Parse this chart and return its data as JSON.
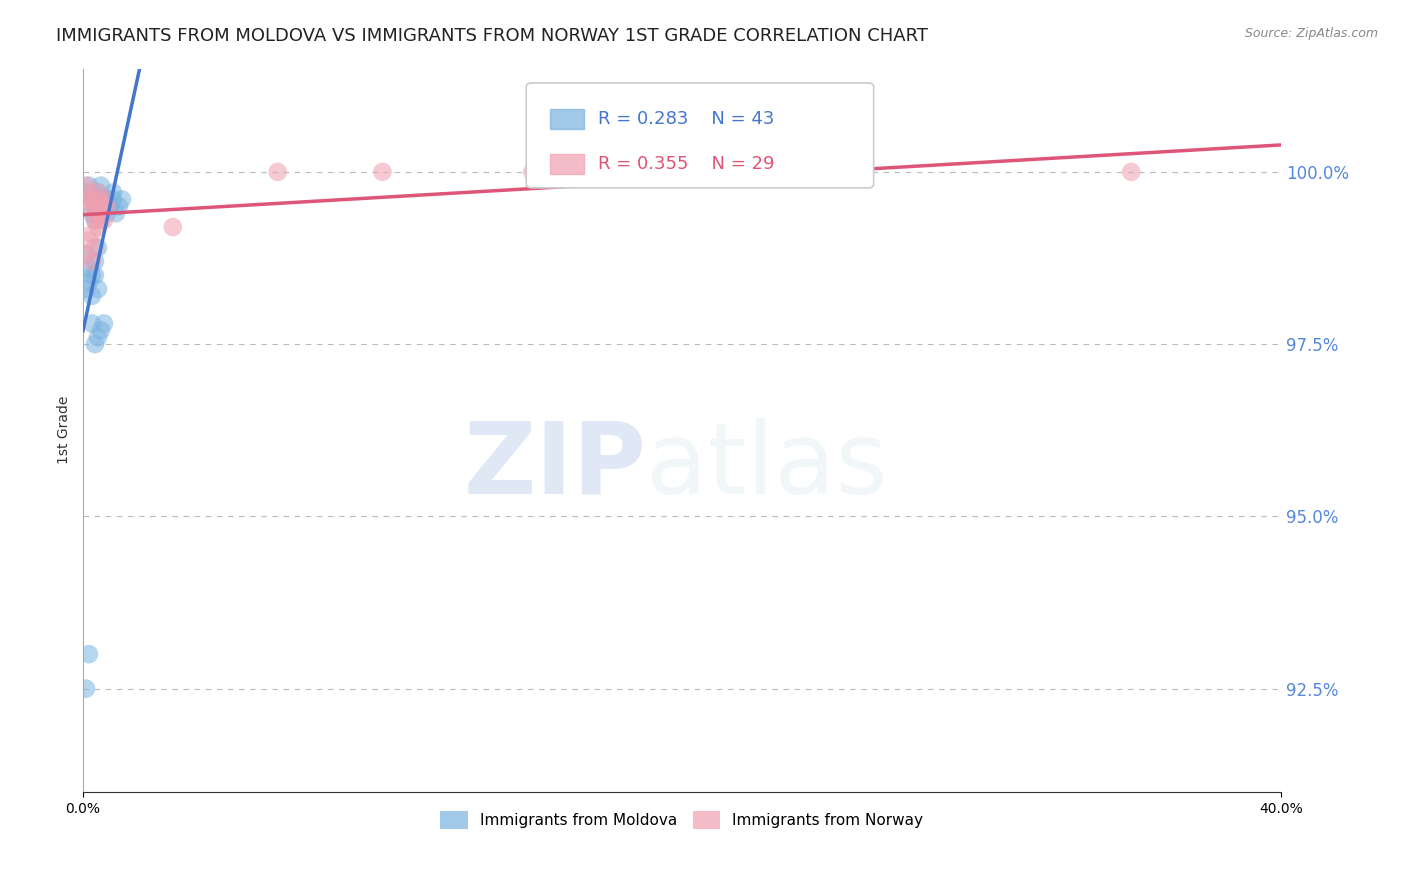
{
  "title": "IMMIGRANTS FROM MOLDOVA VS IMMIGRANTS FROM NORWAY 1ST GRADE CORRELATION CHART",
  "source": "Source: ZipAtlas.com",
  "ylabel": "1st Grade",
  "legend_labels": [
    "Immigrants from Moldova",
    "Immigrants from Norway"
  ],
  "r_moldova": 0.283,
  "n_moldova": 43,
  "r_norway": 0.355,
  "n_norway": 29,
  "color_moldova": "#7ab3e0",
  "color_norway": "#f0a0b0",
  "trendline_moldova": "#4477cc",
  "trendline_norway": "#dd5577",
  "xlim": [
    0.0,
    0.4
  ],
  "ylim": [
    91.0,
    101.5
  ],
  "right_yticks": [
    92.5,
    95.0,
    97.5,
    100.0
  ],
  "watermark_zip": "ZIP",
  "watermark_atlas": "atlas",
  "background_color": "#ffffff",
  "grid_color": "#bbbbbb",
  "title_fontsize": 13,
  "label_fontsize": 10,
  "tick_fontsize": 10,
  "legend_fontsize": 11,
  "moldova_x": [
    0.001,
    0.002,
    0.003,
    0.004,
    0.005,
    0.006,
    0.007,
    0.008,
    0.003,
    0.004,
    0.005,
    0.006,
    0.007,
    0.008,
    0.009,
    0.01,
    0.004,
    0.005,
    0.006,
    0.007,
    0.008,
    0.009,
    0.01,
    0.011,
    0.012,
    0.013,
    0.003,
    0.004,
    0.005,
    0.006,
    0.007,
    0.001,
    0.002,
    0.003,
    0.004,
    0.005,
    0.001,
    0.002,
    0.003,
    0.004,
    0.005,
    0.001,
    0.002
  ],
  "moldova_y": [
    99.7,
    99.8,
    99.6,
    99.5,
    99.7,
    99.8,
    99.6,
    99.5,
    99.4,
    99.5,
    99.6,
    99.4,
    99.5,
    99.6,
    99.5,
    99.7,
    99.3,
    99.4,
    99.5,
    99.6,
    99.4,
    99.5,
    99.6,
    99.4,
    99.5,
    99.6,
    97.8,
    97.5,
    97.6,
    97.7,
    97.8,
    98.8,
    98.6,
    98.5,
    98.7,
    98.9,
    98.3,
    98.4,
    98.2,
    98.5,
    98.3,
    92.5,
    93.0
  ],
  "norway_x": [
    0.001,
    0.002,
    0.003,
    0.004,
    0.005,
    0.006,
    0.007,
    0.002,
    0.003,
    0.004,
    0.005,
    0.006,
    0.007,
    0.008,
    0.003,
    0.004,
    0.005,
    0.006,
    0.007,
    0.001,
    0.002,
    0.003,
    0.004,
    0.03,
    0.065,
    0.1,
    0.15,
    0.25,
    0.35
  ],
  "norway_y": [
    99.8,
    99.6,
    99.5,
    99.4,
    99.6,
    99.3,
    99.5,
    99.7,
    99.6,
    99.5,
    99.7,
    99.4,
    99.6,
    99.5,
    99.1,
    99.3,
    99.2,
    99.4,
    99.3,
    98.8,
    99.0,
    98.7,
    98.9,
    99.2,
    100.0,
    100.0,
    100.0,
    100.0,
    100.0
  ]
}
